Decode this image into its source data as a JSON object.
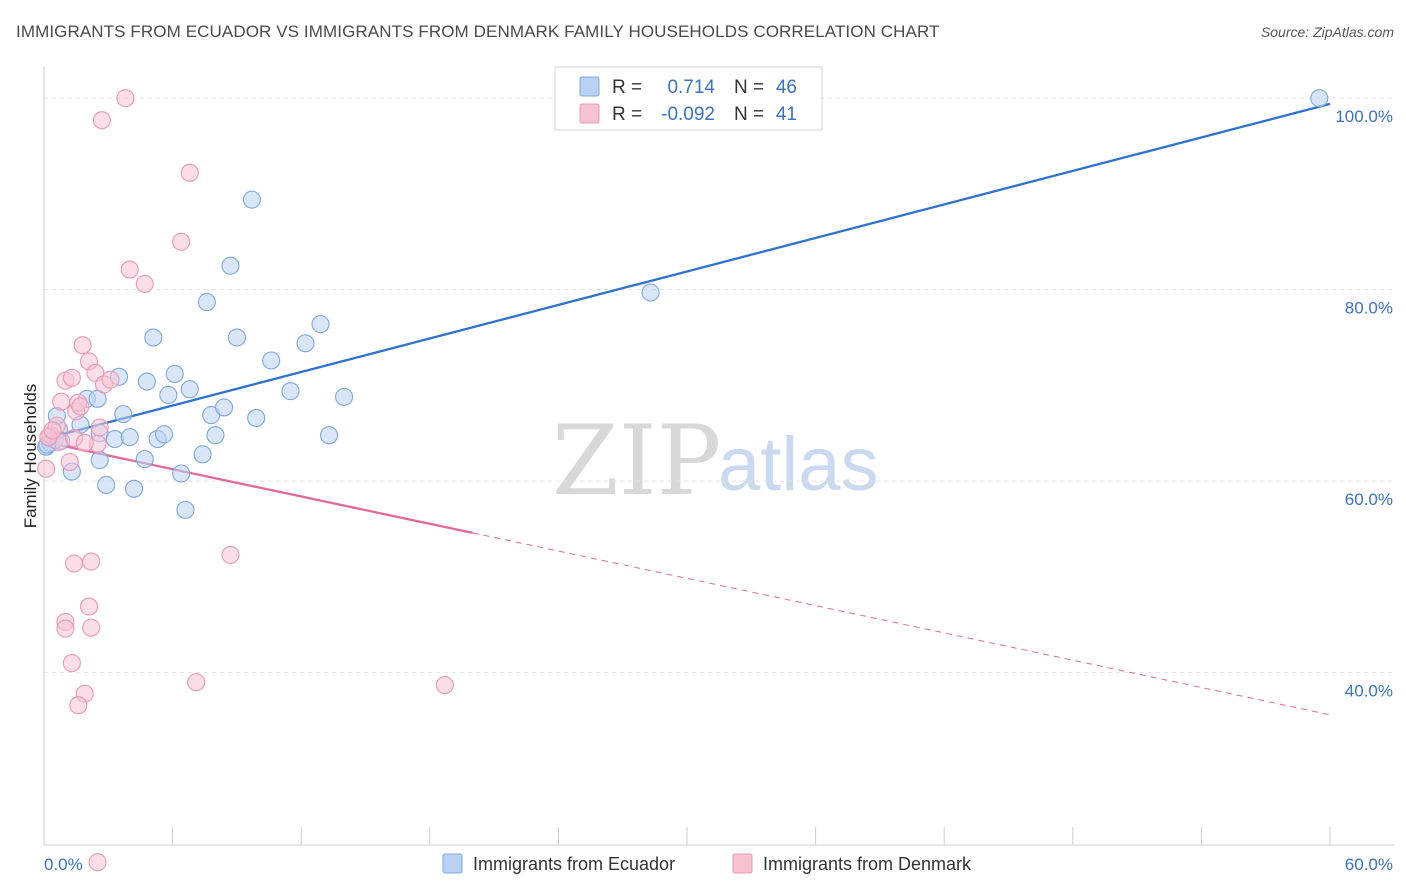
{
  "title": "IMMIGRANTS FROM ECUADOR VS IMMIGRANTS FROM DENMARK FAMILY HOUSEHOLDS CORRELATION CHART",
  "source": "Source: ZipAtlas.com",
  "watermark": {
    "zip": "ZIP",
    "atlas": "atlas"
  },
  "legend_top": [
    {
      "r_label": "R =",
      "r_value": "0.714",
      "n_label": "N =",
      "n_value": "46"
    },
    {
      "r_label": "R =",
      "r_value": "-0.092",
      "n_label": "N =",
      "n_value": "41"
    }
  ],
  "colors": {
    "ecuador_fill": "#b9d2f3",
    "ecuador_stroke": "#7ea8e0",
    "ecuador_line": "#2f72cc",
    "denmark_fill": "#f7c3d3",
    "denmark_stroke": "#ea98b4",
    "denmark_line": "#e26a98",
    "value_text": "#3a72c9",
    "grid": "#e2e2e2"
  },
  "chart_data": {
    "type": "scatter",
    "title": "IMMIGRANTS FROM ECUADOR VS IMMIGRANTS FROM DENMARK FAMILY HOUSEHOLDS CORRELATION CHART",
    "xlabel": "",
    "ylabel": "Family Households",
    "xlim": [
      0,
      60
    ],
    "ylim": [
      22,
      102
    ],
    "x_tick_labels": [
      "0.0%",
      "60.0%"
    ],
    "y_ticks": [
      40,
      60,
      80,
      100
    ],
    "y_tick_labels": [
      "40.0%",
      "60.0%",
      "80.0%",
      "100.0%"
    ],
    "grid": true,
    "legend_position": "bottom-center",
    "series": [
      {
        "name": "Immigrants from Ecuador",
        "points": [
          [
            0.1,
            63.6
          ],
          [
            0.3,
            64.0
          ],
          [
            0.5,
            64.3
          ],
          [
            0.7,
            65.4
          ],
          [
            0.6,
            66.8
          ],
          [
            0.8,
            64.2
          ],
          [
            1.3,
            61.0
          ],
          [
            1.7,
            65.9
          ],
          [
            2.0,
            68.6
          ],
          [
            2.5,
            68.6
          ],
          [
            2.6,
            65.0
          ],
          [
            2.6,
            62.2
          ],
          [
            2.9,
            59.6
          ],
          [
            3.3,
            64.4
          ],
          [
            3.7,
            67.0
          ],
          [
            3.5,
            70.9
          ],
          [
            4.0,
            64.6
          ],
          [
            4.2,
            59.2
          ],
          [
            4.7,
            62.3
          ],
          [
            4.8,
            70.4
          ],
          [
            5.1,
            75.0
          ],
          [
            5.3,
            64.4
          ],
          [
            5.6,
            64.9
          ],
          [
            5.8,
            69.0
          ],
          [
            6.1,
            71.2
          ],
          [
            6.4,
            60.8
          ],
          [
            6.6,
            57.0
          ],
          [
            6.8,
            69.6
          ],
          [
            7.4,
            62.8
          ],
          [
            7.6,
            78.7
          ],
          [
            7.8,
            66.9
          ],
          [
            8.0,
            64.8
          ],
          [
            8.4,
            67.7
          ],
          [
            8.7,
            82.5
          ],
          [
            9.0,
            75.0
          ],
          [
            9.7,
            89.4
          ],
          [
            9.9,
            66.6
          ],
          [
            10.6,
            72.6
          ],
          [
            11.5,
            69.4
          ],
          [
            12.2,
            74.4
          ],
          [
            12.9,
            76.4
          ],
          [
            13.3,
            64.8
          ],
          [
            14.0,
            68.8
          ],
          [
            28.3,
            79.7
          ],
          [
            59.5,
            100.0
          ],
          [
            0.15,
            63.8
          ]
        ]
      },
      {
        "name": "Immigrants from Denmark",
        "points": [
          [
            0.1,
            61.3
          ],
          [
            0.3,
            64.8
          ],
          [
            0.6,
            65.8
          ],
          [
            0.7,
            64.1
          ],
          [
            0.8,
            68.3
          ],
          [
            1.0,
            70.5
          ],
          [
            1.2,
            62.0
          ],
          [
            1.3,
            70.8
          ],
          [
            1.4,
            64.5
          ],
          [
            1.5,
            67.3
          ],
          [
            1.6,
            68.2
          ],
          [
            1.7,
            67.8
          ],
          [
            1.8,
            74.2
          ],
          [
            2.1,
            72.5
          ],
          [
            2.4,
            71.3
          ],
          [
            2.5,
            63.9
          ],
          [
            2.6,
            65.6
          ],
          [
            2.8,
            70.1
          ],
          [
            3.1,
            70.6
          ],
          [
            1.4,
            51.4
          ],
          [
            2.2,
            51.6
          ],
          [
            1.0,
            45.3
          ],
          [
            2.2,
            44.7
          ],
          [
            2.1,
            46.9
          ],
          [
            1.0,
            44.6
          ],
          [
            1.3,
            41.0
          ],
          [
            1.9,
            37.8
          ],
          [
            1.6,
            36.6
          ],
          [
            2.5,
            20.2
          ],
          [
            2.7,
            97.7
          ],
          [
            3.8,
            100.0
          ],
          [
            6.8,
            92.2
          ],
          [
            6.4,
            85.0
          ],
          [
            4.0,
            82.1
          ],
          [
            4.7,
            80.6
          ],
          [
            7.1,
            39.0
          ],
          [
            8.7,
            52.3
          ],
          [
            18.7,
            38.7
          ],
          [
            0.2,
            64.6
          ],
          [
            0.4,
            65.3
          ],
          [
            1.9,
            64.0
          ]
        ]
      }
    ],
    "trendlines": [
      {
        "series": "Immigrants from Ecuador",
        "x": [
          0,
          60
        ],
        "y": [
          64.4,
          99.4
        ],
        "style": "solid"
      },
      {
        "series": "Immigrants from Denmark",
        "x": [
          0,
          20
        ],
        "y": [
          64.1,
          54.6
        ],
        "style": "solid"
      },
      {
        "series": "Immigrants from Denmark",
        "x": [
          20,
          60
        ],
        "y": [
          54.6,
          35.6
        ],
        "style": "dashed"
      }
    ]
  }
}
